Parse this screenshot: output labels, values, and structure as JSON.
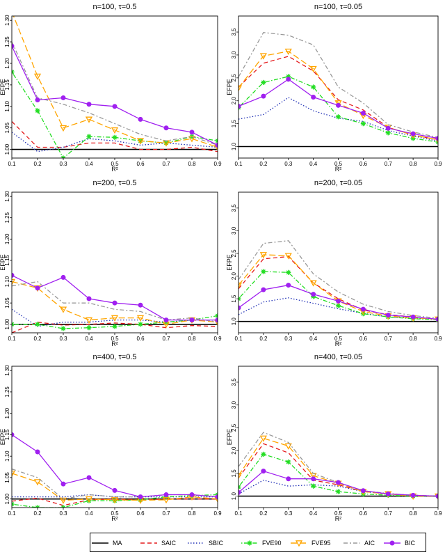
{
  "chart_data": [
    {
      "type": "line",
      "title": "n=100, τ=0.5",
      "xlabel": "R²",
      "ylabel": "EFPE",
      "xlim": [
        0.1,
        0.9
      ],
      "ylim": [
        0.98,
        1.31
      ],
      "xticks": [
        "0.1",
        "0.2",
        "0.3",
        "0.4",
        "0.5",
        "0.6",
        "0.7",
        "0.8",
        "0.9"
      ],
      "yticks": [
        "1.00",
        "1.05",
        "1.10",
        "1.15",
        "1.20",
        "1.25",
        "1.30"
      ],
      "x": [
        0.1,
        0.2,
        0.3,
        0.4,
        0.5,
        0.6,
        0.7,
        0.8,
        0.9
      ],
      "series": [
        {
          "name": "MA",
          "values": [
            1.0,
            1.0,
            1.0,
            1.0,
            1.0,
            1.0,
            1.0,
            1.0,
            1.0
          ]
        },
        {
          "name": "SAIC",
          "values": [
            1.065,
            1.005,
            1.005,
            1.015,
            1.015,
            1.0,
            1.0,
            1.005,
            0.995
          ]
        },
        {
          "name": "SBIC",
          "values": [
            1.04,
            0.995,
            1.005,
            1.025,
            1.02,
            1.01,
            1.015,
            1.01,
            1.005
          ]
        },
        {
          "name": "FVE90",
          "values": [
            1.18,
            1.09,
            0.98,
            1.03,
            1.028,
            1.02,
            1.015,
            1.03,
            1.02
          ]
        },
        {
          "name": "FVE95",
          "values": [
            1.32,
            1.17,
            1.05,
            1.07,
            1.045,
            1.02,
            1.015,
            1.025,
            1.005
          ]
        },
        {
          "name": "AIC",
          "values": [
            1.25,
            1.12,
            1.105,
            1.085,
            1.06,
            1.035,
            1.02,
            1.03,
            1.01
          ]
        },
        {
          "name": "BIC",
          "values": [
            1.24,
            1.115,
            1.12,
            1.105,
            1.1,
            1.07,
            1.05,
            1.04,
            1.01
          ]
        }
      ]
    },
    {
      "type": "line",
      "title": "n=100, τ=0.05",
      "xlabel": "R²",
      "ylabel": "EFPE",
      "xlim": [
        0.1,
        0.9
      ],
      "ylim": [
        0.75,
        3.85
      ],
      "xticks": [
        "0.1",
        "0.2",
        "0.3",
        "0.4",
        "0.5",
        "0.6",
        "0.7",
        "0.8",
        "0.9"
      ],
      "yticks": [
        "1.0",
        "1.5",
        "2.0",
        "2.5",
        "3.0",
        "3.5"
      ],
      "x": [
        0.1,
        0.2,
        0.3,
        0.4,
        0.5,
        0.6,
        0.7,
        0.8,
        0.9
      ],
      "series": [
        {
          "name": "MA",
          "values": [
            1.0,
            1.0,
            1.0,
            1.0,
            1.0,
            1.0,
            1.0,
            1.0,
            1.0
          ]
        },
        {
          "name": "SAIC",
          "values": [
            2.3,
            2.82,
            2.97,
            2.65,
            2.02,
            1.8,
            1.42,
            1.25,
            1.15
          ]
        },
        {
          "name": "SBIC",
          "values": [
            1.6,
            1.7,
            2.07,
            1.78,
            1.62,
            1.55,
            1.35,
            1.23,
            1.12
          ]
        },
        {
          "name": "FVE90",
          "values": [
            1.85,
            2.4,
            2.53,
            2.3,
            1.65,
            1.5,
            1.3,
            1.18,
            1.1
          ]
        },
        {
          "name": "FVE95",
          "values": [
            2.28,
            2.98,
            3.08,
            2.7,
            1.95,
            1.68,
            1.42,
            1.25,
            1.15
          ]
        },
        {
          "name": "AIC",
          "values": [
            2.52,
            3.49,
            3.43,
            3.22,
            2.3,
            1.95,
            1.48,
            1.32,
            1.2
          ]
        },
        {
          "name": "BIC",
          "values": [
            1.88,
            2.1,
            2.47,
            2.08,
            1.9,
            1.73,
            1.4,
            1.28,
            1.18
          ]
        }
      ]
    },
    {
      "type": "line",
      "title": "n=200, τ=0.5",
      "xlabel": "R²",
      "ylabel": "EFPE",
      "xlim": [
        0.1,
        0.9
      ],
      "ylim": [
        0.98,
        1.31
      ],
      "xticks": [
        "0.1",
        "0.2",
        "0.3",
        "0.4",
        "0.5",
        "0.6",
        "0.7",
        "0.8",
        "0.9"
      ],
      "yticks": [
        "1.00",
        "1.05",
        "1.10",
        "1.15",
        "1.20",
        "1.25",
        "1.30"
      ],
      "x": [
        0.1,
        0.2,
        0.3,
        0.4,
        0.5,
        0.6,
        0.7,
        0.8,
        0.9
      ],
      "series": [
        {
          "name": "MA",
          "values": [
            1.0,
            1.0,
            1.0,
            1.0,
            1.0,
            1.0,
            1.0,
            1.0,
            1.0
          ]
        },
        {
          "name": "SAIC",
          "values": [
            0.98,
            1.005,
            0.998,
            1.0,
            1.003,
            1.0,
            0.992,
            0.997,
            0.995
          ]
        },
        {
          "name": "SBIC",
          "values": [
            1.035,
            0.995,
            1.005,
            1.005,
            1.01,
            1.01,
            1.005,
            1.01,
            1.01
          ]
        },
        {
          "name": "FVE90",
          "values": [
            1.0,
            1.0,
            0.99,
            0.992,
            0.995,
            1.0,
            1.005,
            1.01,
            1.02
          ]
        },
        {
          "name": "FVE95",
          "values": [
            1.1,
            1.085,
            1.035,
            1.01,
            1.015,
            1.015,
            1.0,
            1.01,
            1.005
          ]
        },
        {
          "name": "AIC",
          "values": [
            1.09,
            1.1,
            1.05,
            1.05,
            1.035,
            1.03,
            1.01,
            1.015,
            1.005
          ]
        },
        {
          "name": "BIC",
          "values": [
            1.115,
            1.085,
            1.11,
            1.06,
            1.05,
            1.045,
            1.01,
            1.01,
            1.01
          ]
        }
      ]
    },
    {
      "type": "line",
      "title": "n=200, τ=0.05",
      "xlabel": "R²",
      "ylabel": "EFPE",
      "xlim": [
        0.1,
        0.9
      ],
      "ylim": [
        0.75,
        3.85
      ],
      "xticks": [
        "0.1",
        "0.2",
        "0.3",
        "0.4",
        "0.5",
        "0.6",
        "0.7",
        "0.8",
        "0.9"
      ],
      "yticks": [
        "1.0",
        "1.5",
        "2.0",
        "2.5",
        "3.0",
        "3.5"
      ],
      "x": [
        0.1,
        0.2,
        0.3,
        0.4,
        0.5,
        0.6,
        0.7,
        0.8,
        0.9
      ],
      "series": [
        {
          "name": "MA",
          "values": [
            1.0,
            1.0,
            1.0,
            1.0,
            1.0,
            1.0,
            1.0,
            1.0,
            1.0
          ]
        },
        {
          "name": "SAIC",
          "values": [
            1.72,
            2.38,
            2.43,
            1.85,
            1.5,
            1.25,
            1.15,
            1.1,
            1.05
          ]
        },
        {
          "name": "SBIC",
          "values": [
            1.15,
            1.43,
            1.52,
            1.4,
            1.28,
            1.18,
            1.1,
            1.07,
            1.04
          ]
        },
        {
          "name": "FVE90",
          "values": [
            1.5,
            2.1,
            2.08,
            1.55,
            1.35,
            1.17,
            1.1,
            1.06,
            1.04
          ]
        },
        {
          "name": "FVE95",
          "values": [
            1.8,
            2.47,
            2.45,
            1.85,
            1.45,
            1.22,
            1.12,
            1.08,
            1.05
          ]
        },
        {
          "name": "AIC",
          "values": [
            1.92,
            2.72,
            2.78,
            2.05,
            1.65,
            1.38,
            1.22,
            1.13,
            1.07
          ]
        },
        {
          "name": "BIC",
          "values": [
            1.3,
            1.7,
            1.8,
            1.6,
            1.45,
            1.27,
            1.14,
            1.1,
            1.05
          ]
        }
      ]
    },
    {
      "type": "line",
      "title": "n=400, τ=0.5",
      "xlabel": "R²",
      "ylabel": "EFPE",
      "xlim": [
        0.1,
        0.9
      ],
      "ylim": [
        0.98,
        1.31
      ],
      "xticks": [
        "0.1",
        "0.2",
        "0.3",
        "0.4",
        "0.5",
        "0.6",
        "0.7",
        "0.8",
        "0.9"
      ],
      "yticks": [
        "1.00",
        "1.05",
        "1.10",
        "1.15",
        "1.20",
        "1.25",
        "1.30"
      ],
      "x": [
        0.1,
        0.2,
        0.3,
        0.4,
        0.5,
        0.6,
        0.7,
        0.8,
        0.9
      ],
      "series": [
        {
          "name": "MA",
          "values": [
            1.0,
            1.0,
            1.0,
            1.0,
            1.0,
            1.0,
            1.0,
            1.0,
            1.0
          ]
        },
        {
          "name": "SAIC",
          "values": [
            0.995,
            1.002,
            0.985,
            0.998,
            1.0,
            0.998,
            1.0,
            1.0,
            1.0
          ]
        },
        {
          "name": "SBIC",
          "values": [
            1.005,
            1.005,
            1.005,
            1.01,
            1.005,
            1.005,
            1.005,
            1.005,
            1.005
          ]
        },
        {
          "name": "FVE90",
          "values": [
            0.988,
            0.98,
            0.98,
            0.996,
            0.996,
            0.998,
            1.005,
            1.008,
            1.01
          ]
        },
        {
          "name": "FVE95",
          "values": [
            1.06,
            1.04,
            0.997,
            1.0,
            0.998,
            0.997,
            0.998,
            1.005,
            1.0
          ]
        },
        {
          "name": "AIC",
          "values": [
            1.07,
            1.05,
            1.0,
            1.01,
            1.005,
            1.005,
            1.01,
            1.01,
            1.005
          ]
        },
        {
          "name": "BIC",
          "values": [
            1.15,
            1.11,
            1.035,
            1.05,
            1.02,
            1.005,
            1.01,
            1.01,
            1.005
          ]
        }
      ]
    },
    {
      "type": "line",
      "title": "n=400, τ=0.05",
      "xlabel": "R²",
      "ylabel": "EFPE",
      "xlim": [
        0.1,
        0.9
      ],
      "ylim": [
        0.75,
        3.85
      ],
      "xticks": [
        "0.1",
        "0.2",
        "0.3",
        "0.4",
        "0.5",
        "0.6",
        "0.7",
        "0.8",
        "0.9"
      ],
      "yticks": [
        "1.0",
        "1.5",
        "2.0",
        "2.5",
        "3.0",
        "3.5"
      ],
      "x": [
        0.1,
        0.2,
        0.3,
        0.4,
        0.5,
        0.6,
        0.7,
        0.8,
        0.9
      ],
      "series": [
        {
          "name": "MA",
          "values": [
            1.0,
            1.0,
            1.0,
            1.0,
            1.0,
            1.0,
            1.0,
            1.0,
            1.0
          ]
        },
        {
          "name": "SAIC",
          "values": [
            1.4,
            2.15,
            1.95,
            1.35,
            1.25,
            1.1,
            1.05,
            1.02,
            1.0
          ]
        },
        {
          "name": "SBIC",
          "values": [
            1.05,
            1.35,
            1.22,
            1.25,
            1.22,
            1.1,
            1.05,
            1.02,
            1.0
          ]
        },
        {
          "name": "FVE90",
          "values": [
            1.2,
            1.92,
            1.75,
            1.22,
            1.1,
            1.05,
            1.02,
            1.0,
            1.0
          ]
        },
        {
          "name": "FVE95",
          "values": [
            1.45,
            2.27,
            2.1,
            1.45,
            1.28,
            1.1,
            1.05,
            1.0,
            1.0
          ]
        },
        {
          "name": "AIC",
          "values": [
            1.65,
            2.4,
            2.18,
            1.5,
            1.3,
            1.12,
            1.06,
            1.02,
            1.0
          ]
        },
        {
          "name": "BIC",
          "values": [
            1.08,
            1.55,
            1.38,
            1.38,
            1.3,
            1.12,
            1.05,
            1.02,
            1.0
          ]
        }
      ]
    }
  ],
  "legend": [
    {
      "name": "MA",
      "color": "#000000",
      "dash": "solid",
      "marker": "none"
    },
    {
      "name": "SAIC",
      "color": "#e41a1c",
      "dash": "dashed",
      "marker": "none"
    },
    {
      "name": "SBIC",
      "color": "#1f2fb5",
      "dash": "dotted",
      "marker": "none"
    },
    {
      "name": "FVE90",
      "color": "#22dd22",
      "dash": "dotdash",
      "marker": "asterisk"
    },
    {
      "name": "FVE95",
      "color": "#ffa500",
      "dash": "longdash",
      "marker": "triangle-down"
    },
    {
      "name": "AIC",
      "color": "#999999",
      "dash": "twodash",
      "marker": "none"
    },
    {
      "name": "BIC",
      "color": "#a020f0",
      "dash": "solid",
      "marker": "circle"
    }
  ]
}
